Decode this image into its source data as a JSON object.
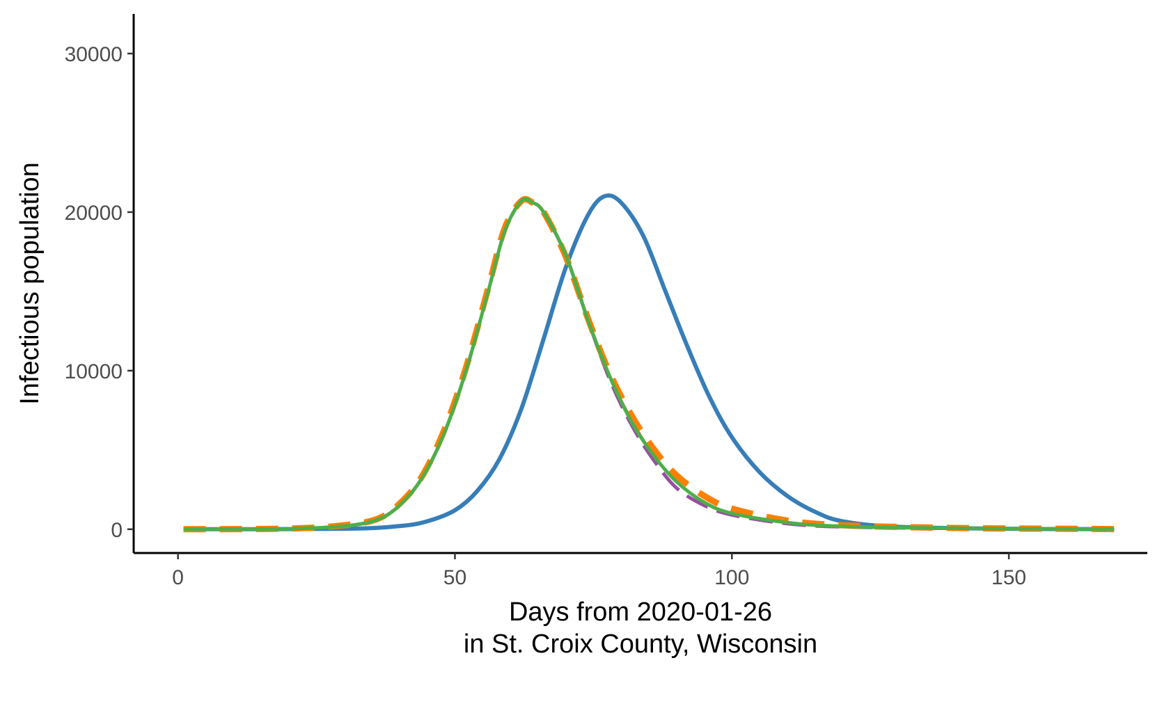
{
  "chart_data": {
    "type": "line",
    "title": "",
    "xlabel": "Days from 2020-01-26",
    "xlabel_line2": "in St. Croix County, Wisconsin",
    "ylabel": "Infectious population",
    "xlim": [
      -8,
      175
    ],
    "ylim": [
      -1500,
      32500
    ],
    "x_ticks": [
      0,
      50,
      100,
      150
    ],
    "y_ticks": [
      0,
      10000,
      20000,
      30000
    ],
    "grid": false,
    "legend": "none",
    "series": [
      {
        "color": "#e41a1c",
        "dash": "",
        "width": 4,
        "points": [
          [
            1,
            0
          ],
          [
            20,
            30
          ],
          [
            30,
            200
          ],
          [
            36,
            600
          ],
          [
            40,
            1500
          ],
          [
            44,
            3200
          ],
          [
            48,
            6000
          ],
          [
            52,
            10000
          ],
          [
            56,
            15000
          ],
          [
            59,
            18800
          ],
          [
            62,
            20700
          ],
          [
            64,
            20600
          ],
          [
            66,
            20000
          ],
          [
            70,
            17300
          ],
          [
            74,
            13200
          ],
          [
            78,
            9600
          ],
          [
            82,
            6800
          ],
          [
            86,
            4600
          ],
          [
            90,
            3000
          ],
          [
            95,
            1700
          ],
          [
            100,
            1000
          ],
          [
            110,
            400
          ],
          [
            120,
            180
          ],
          [
            140,
            60
          ],
          [
            169,
            10
          ]
        ]
      },
      {
        "color": "#984ea3",
        "dash": "34 14",
        "width": 5,
        "points": [
          [
            1,
            0
          ],
          [
            20,
            30
          ],
          [
            30,
            200
          ],
          [
            36,
            600
          ],
          [
            40,
            1500
          ],
          [
            44,
            3200
          ],
          [
            48,
            6000
          ],
          [
            52,
            10000
          ],
          [
            56,
            15000
          ],
          [
            59,
            18800
          ],
          [
            62,
            20700
          ],
          [
            64,
            20600
          ],
          [
            66,
            20000
          ],
          [
            70,
            17300
          ],
          [
            74,
            13200
          ],
          [
            78,
            9400
          ],
          [
            82,
            6500
          ],
          [
            86,
            4300
          ],
          [
            90,
            2600
          ],
          [
            95,
            1500
          ],
          [
            100,
            900
          ],
          [
            110,
            350
          ],
          [
            120,
            150
          ],
          [
            140,
            50
          ],
          [
            169,
            10
          ]
        ]
      },
      {
        "color": "#377eb8",
        "dash": "",
        "width": 6,
        "points": [
          [
            1,
            0
          ],
          [
            30,
            30
          ],
          [
            40,
            200
          ],
          [
            45,
            500
          ],
          [
            50,
            1200
          ],
          [
            54,
            2400
          ],
          [
            58,
            4400
          ],
          [
            62,
            7600
          ],
          [
            66,
            12000
          ],
          [
            70,
            16500
          ],
          [
            74,
            19800
          ],
          [
            77,
            21000
          ],
          [
            80,
            20600
          ],
          [
            84,
            18500
          ],
          [
            88,
            15000
          ],
          [
            92,
            11500
          ],
          [
            96,
            8300
          ],
          [
            100,
            5800
          ],
          [
            105,
            3600
          ],
          [
            110,
            2100
          ],
          [
            115,
            1100
          ],
          [
            120,
            500
          ],
          [
            130,
            150
          ],
          [
            150,
            30
          ],
          [
            169,
            5
          ]
        ]
      },
      {
        "color": "#ff7f00",
        "dash": "32 20",
        "width": 9,
        "points": [
          [
            1,
            0
          ],
          [
            20,
            40
          ],
          [
            30,
            250
          ],
          [
            36,
            650
          ],
          [
            40,
            1600
          ],
          [
            44,
            3300
          ],
          [
            48,
            6200
          ],
          [
            52,
            10200
          ],
          [
            56,
            15200
          ],
          [
            59,
            19000
          ],
          [
            62,
            20700
          ],
          [
            64,
            20600
          ],
          [
            66,
            20000
          ],
          [
            70,
            17200
          ],
          [
            74,
            13300
          ],
          [
            78,
            9800
          ],
          [
            82,
            7100
          ],
          [
            86,
            5000
          ],
          [
            90,
            3400
          ],
          [
            95,
            2100
          ],
          [
            100,
            1300
          ],
          [
            110,
            550
          ],
          [
            120,
            250
          ],
          [
            140,
            80
          ],
          [
            169,
            10
          ]
        ]
      },
      {
        "color": "#4daf4a",
        "dash": "",
        "width": 5,
        "points": [
          [
            1,
            0
          ],
          [
            20,
            30
          ],
          [
            30,
            200
          ],
          [
            36,
            600
          ],
          [
            40,
            1500
          ],
          [
            44,
            3200
          ],
          [
            48,
            6000
          ],
          [
            52,
            10000
          ],
          [
            56,
            15000
          ],
          [
            59,
            18800
          ],
          [
            62,
            20700
          ],
          [
            64,
            20600
          ],
          [
            66,
            20000
          ],
          [
            70,
            17300
          ],
          [
            74,
            13200
          ],
          [
            78,
            9600
          ],
          [
            82,
            6700
          ],
          [
            86,
            4600
          ],
          [
            90,
            3000
          ],
          [
            95,
            1700
          ],
          [
            100,
            1000
          ],
          [
            110,
            420
          ],
          [
            120,
            180
          ],
          [
            140,
            60
          ],
          [
            169,
            10
          ]
        ]
      }
    ]
  }
}
